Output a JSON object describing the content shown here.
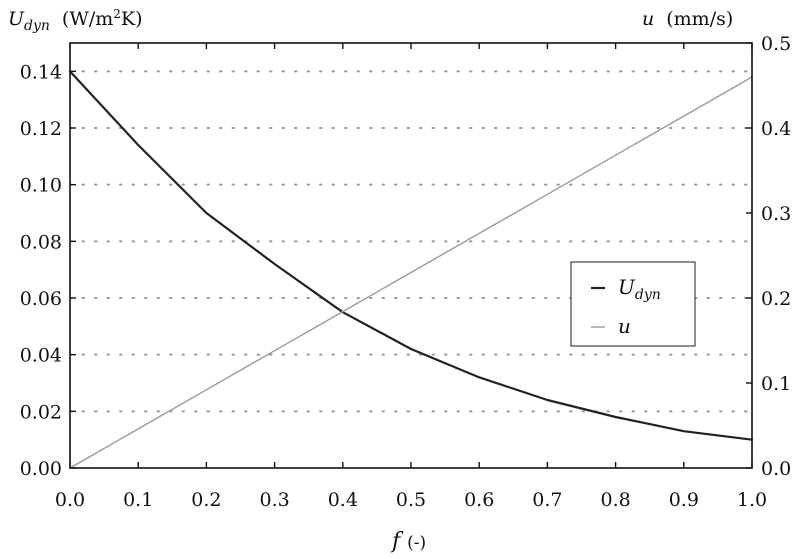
{
  "chart_data": {
    "type": "line",
    "x": [
      0.0,
      0.1,
      0.2,
      0.3,
      0.4,
      0.5,
      0.6,
      0.7,
      0.8,
      0.9,
      1.0
    ],
    "xlabel": {
      "symbol": "f",
      "unit": "(-)"
    },
    "xlim": [
      0.0,
      1.0
    ],
    "xticks": [
      "0.0",
      "0.1",
      "0.2",
      "0.3",
      "0.4",
      "0.5",
      "0.6",
      "0.7",
      "0.8",
      "0.9",
      "1.0"
    ],
    "ylabel_left": {
      "symbol": "U",
      "subscript": "dyn",
      "unit": "(W/m",
      "unit_sup": "2",
      "unit_end": "K)"
    },
    "ylim_left": [
      0.0,
      0.15
    ],
    "yticks_left": [
      "0.00",
      "0.02",
      "0.04",
      "0.06",
      "0.08",
      "0.10",
      "0.12",
      "0.14"
    ],
    "ylabel_right": {
      "symbol": "u",
      "unit": "(mm/s)"
    },
    "ylim_right": [
      0.0,
      0.5
    ],
    "yticks_right": [
      "0.0",
      "0.1",
      "0.2",
      "0.3",
      "0.4",
      "0.5"
    ],
    "grid": "horizontal dotted",
    "legend_position": "center-right",
    "series": [
      {
        "name": "U_dyn",
        "legend_symbol": "U",
        "legend_subscript": "dyn",
        "axis": "left",
        "color": "#222222",
        "values": [
          0.14,
          0.114,
          0.09,
          0.072,
          0.055,
          0.042,
          0.032,
          0.024,
          0.018,
          0.013,
          0.01
        ]
      },
      {
        "name": "u",
        "legend_symbol": "u",
        "axis": "right",
        "color": "#9a9a9a",
        "values": [
          0.0,
          0.046,
          0.092,
          0.138,
          0.184,
          0.23,
          0.276,
          0.322,
          0.368,
          0.414,
          0.46
        ]
      }
    ]
  }
}
